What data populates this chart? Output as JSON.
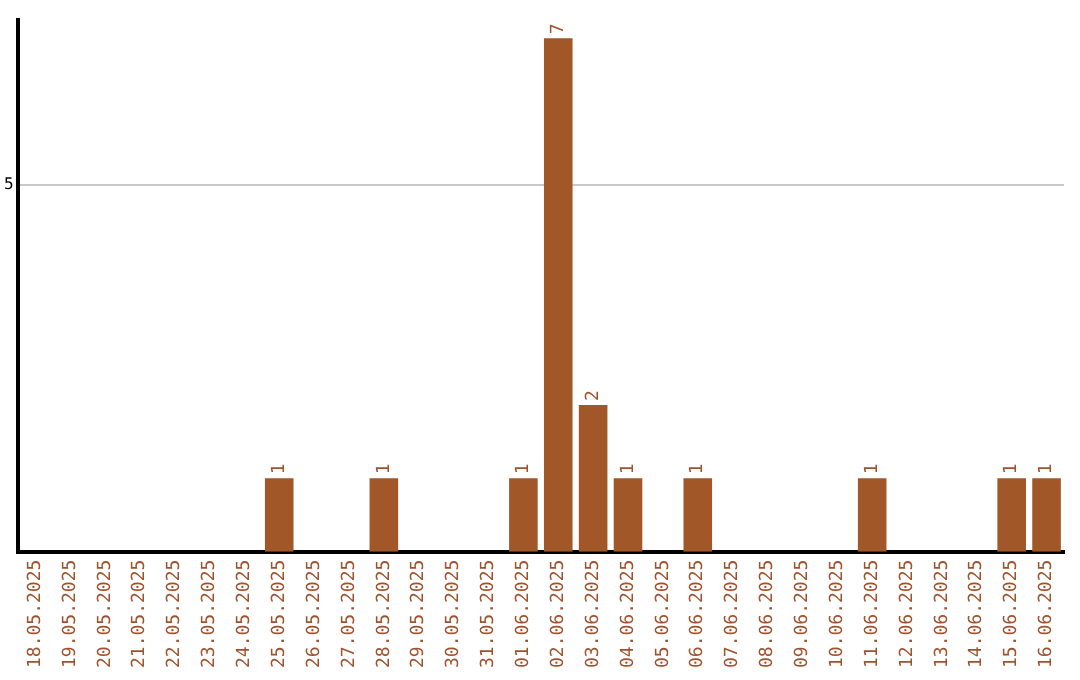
{
  "chart_data": {
    "type": "bar",
    "categories": [
      "18.05.2025",
      "19.05.2025",
      "20.05.2025",
      "21.05.2025",
      "22.05.2025",
      "23.05.2025",
      "24.05.2025",
      "25.05.2025",
      "26.05.2025",
      "27.05.2025",
      "28.05.2025",
      "29.05.2025",
      "30.05.2025",
      "31.05.2025",
      "01.06.2025",
      "02.06.2025",
      "03.06.2025",
      "04.06.2025",
      "05.06.2025",
      "06.06.2025",
      "07.06.2025",
      "08.06.2025",
      "09.06.2025",
      "10.06.2025",
      "11.06.2025",
      "12.06.2025",
      "13.06.2025",
      "14.06.2025",
      "15.06.2025",
      "16.06.2025"
    ],
    "values": [
      0,
      0,
      0,
      0,
      0,
      0,
      0,
      1,
      0,
      0,
      1,
      0,
      0,
      0,
      1,
      7,
      2,
      1,
      0,
      1,
      0,
      0,
      0,
      0,
      1,
      0,
      0,
      0,
      1,
      1
    ],
    "value_labels": [
      null,
      null,
      null,
      null,
      null,
      null,
      null,
      "1",
      null,
      null,
      "1",
      null,
      null,
      null,
      "1",
      "7",
      "2",
      "1",
      null,
      "1",
      null,
      null,
      null,
      null,
      "1",
      null,
      null,
      null,
      "1",
      "1"
    ],
    "color": "#a15728",
    "ylim": [
      0,
      7.25
    ],
    "yticks": [
      5
    ],
    "grid": "y",
    "legend": false
  }
}
